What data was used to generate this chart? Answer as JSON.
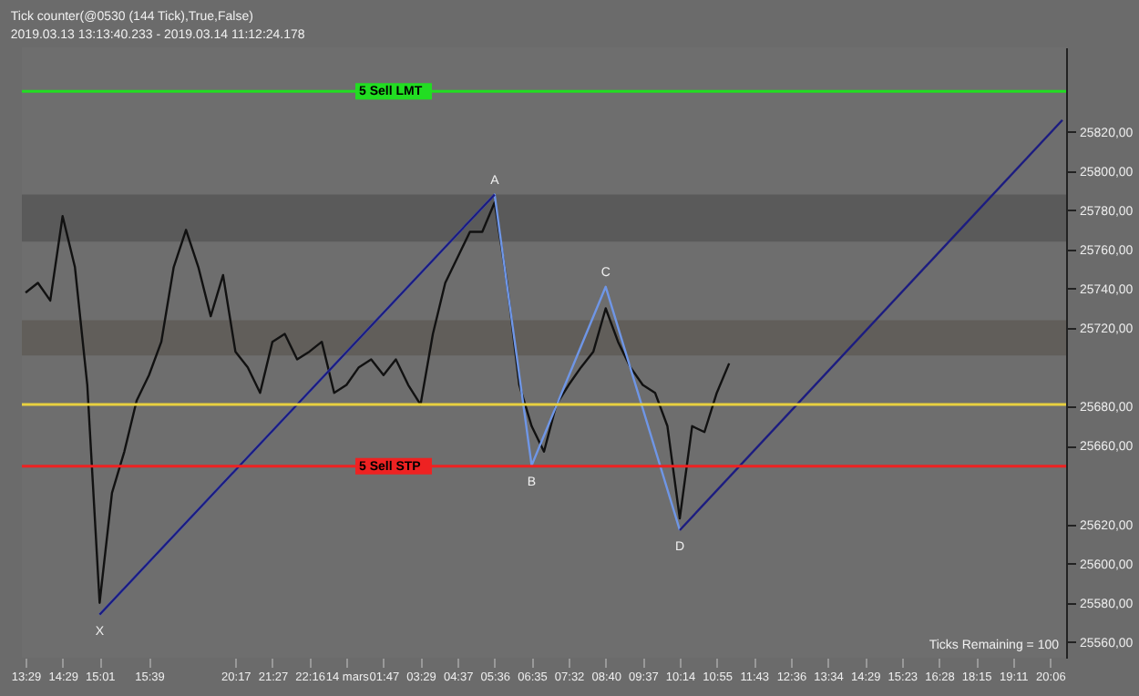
{
  "chart_data": {
    "type": "line",
    "title": "Tick counter(@0530 (144 Tick),True,False)",
    "subtitle": "2019.03.13 13:13:40.233 - 2019.03.14 11:12:24.178",
    "categories": [
      "13:29",
      null,
      null,
      "14:29",
      null,
      null,
      "15:01",
      null,
      null,
      null,
      "15:39",
      null,
      null,
      null,
      null,
      null,
      null,
      "20:17",
      null,
      null,
      "21:27",
      null,
      null,
      "22:16",
      null,
      null,
      "14 mars",
      null,
      null,
      "01:47",
      null,
      null,
      "03:29",
      null,
      null,
      "04:37",
      null,
      null,
      "05:36",
      null,
      null,
      "06:35",
      null,
      null,
      "07:32",
      null,
      null,
      "08:40",
      null,
      null,
      "09:37",
      null,
      null,
      "10:14",
      null,
      null,
      "10:55",
      null,
      null,
      "11:43",
      null,
      null,
      "12:36",
      null,
      null,
      "13:34",
      null,
      null,
      "14:29",
      null,
      null,
      "15:23",
      null,
      null,
      "16:28",
      null,
      null,
      "18:15",
      null,
      null,
      "19:11",
      null,
      null,
      "20:06",
      null
    ],
    "ylim": [
      25552,
      25863
    ],
    "yticks": [
      {
        "value": 25820,
        "label": "25820,00"
      },
      {
        "value": 25800,
        "label": "25800,00"
      },
      {
        "value": 25780,
        "label": "25780,00"
      },
      {
        "value": 25760,
        "label": "25760,00"
      },
      {
        "value": 25740,
        "label": "25740,00"
      },
      {
        "value": 25720,
        "label": "25720,00"
      },
      {
        "value": 25680,
        "label": "25680,00"
      },
      {
        "value": 25660,
        "label": "25660,00"
      },
      {
        "value": 25620,
        "label": "25620,00"
      },
      {
        "value": 25600,
        "label": "25600,00"
      },
      {
        "value": 25580,
        "label": "25580,00"
      },
      {
        "value": 25560,
        "label": "25560,00"
      }
    ],
    "series": [
      {
        "color": "#111111",
        "values": [
          25738,
          25743,
          25734,
          25777,
          25751,
          25691,
          25580,
          25636,
          25657,
          25683,
          25696,
          25713,
          25751,
          25770,
          25751,
          25726,
          25747,
          25708,
          25700,
          25687,
          25713,
          25717,
          25704,
          25708,
          25713,
          25687,
          25691,
          25700,
          25704,
          25696,
          25704,
          25691,
          25681,
          25717,
          25743,
          25756,
          25769,
          25769,
          25784,
          25743,
          25691,
          25670,
          25657,
          25681,
          25691,
          25700,
          25708,
          25730,
          25713,
          25700,
          25691,
          25687,
          25670,
          25623,
          25670,
          25667,
          25687,
          25702,
          null,
          null,
          null,
          null,
          null,
          null,
          null,
          null,
          null,
          null,
          null,
          null,
          null,
          null,
          null,
          null,
          null,
          null,
          null,
          null,
          null,
          null,
          null,
          null,
          null,
          null,
          null
        ]
      },
      {
        "color": "#6f96e6",
        "values": [
          null,
          null,
          null,
          null,
          null,
          null,
          25574,
          null,
          null,
          null,
          null,
          null,
          null,
          null,
          null,
          null,
          null,
          null,
          null,
          null,
          null,
          null,
          null,
          null,
          null,
          null,
          null,
          null,
          null,
          null,
          null,
          null,
          null,
          null,
          null,
          null,
          null,
          null,
          25788,
          null,
          null,
          25650,
          null,
          null,
          null,
          null,
          null,
          25741,
          null,
          null,
          null,
          null,
          null,
          25617,
          null,
          null,
          null,
          null,
          null,
          null,
          null,
          null,
          null,
          null,
          null,
          null,
          null,
          null,
          null,
          null,
          null,
          null,
          null,
          null,
          null,
          null,
          null,
          null,
          null,
          null,
          null,
          null,
          null,
          null,
          null
        ]
      },
      {
        "color": "#1c1c80",
        "values": [
          null,
          null,
          null,
          null,
          null,
          null,
          25574,
          null,
          null,
          null,
          null,
          null,
          null,
          null,
          null,
          null,
          null,
          null,
          null,
          null,
          null,
          null,
          null,
          null,
          null,
          null,
          null,
          null,
          null,
          null,
          null,
          null,
          null,
          null,
          null,
          null,
          null,
          null,
          25788,
          null,
          null,
          null,
          null,
          null,
          null,
          null,
          null,
          null,
          null,
          null,
          null,
          null,
          null,
          null,
          null,
          null,
          null,
          null,
          null,
          null,
          null,
          null,
          null,
          null,
          null,
          null,
          null,
          null,
          null,
          null,
          null,
          null,
          null,
          null,
          null,
          null,
          null,
          null,
          null,
          null,
          null,
          null,
          null,
          null,
          null
        ]
      },
      {
        "color": "#1c1c80",
        "values": [
          null,
          null,
          null,
          null,
          null,
          null,
          null,
          null,
          null,
          null,
          null,
          null,
          null,
          null,
          null,
          null,
          null,
          null,
          null,
          null,
          null,
          null,
          null,
          null,
          null,
          null,
          null,
          null,
          null,
          null,
          null,
          null,
          null,
          null,
          null,
          null,
          null,
          null,
          null,
          null,
          null,
          null,
          null,
          null,
          null,
          null,
          null,
          null,
          null,
          null,
          null,
          null,
          null,
          25617,
          null,
          null,
          null,
          null,
          null,
          null,
          null,
          null,
          null,
          null,
          null,
          null,
          null,
          null,
          null,
          null,
          null,
          null,
          null,
          null,
          null,
          null,
          null,
          null,
          null,
          null,
          null,
          null,
          null,
          null,
          25826
        ]
      }
    ],
    "annotations": [
      {
        "text": "X",
        "x": "15:01",
        "y": 25574
      },
      {
        "text": "A",
        "x": "05:36",
        "y": 25788
      },
      {
        "text": "B",
        "x": "06:35",
        "y": 25650
      },
      {
        "text": "C",
        "x": "08:40",
        "y": 25741
      },
      {
        "text": "D",
        "x": "10:14",
        "y": 25617
      },
      "Ticks Remaining = 100"
    ],
    "ref_lines": [
      {
        "axis": "y",
        "value": 25840.64,
        "label": "5 Sell LMT",
        "color": "#22dd22"
      },
      {
        "axis": "y",
        "value": 25649.63,
        "label": "5 Sell STP",
        "color": "#ee2222"
      },
      {
        "axis": "y",
        "value": 25681,
        "color": "#e8d040"
      }
    ],
    "bands": [
      {
        "axis": "y",
        "from": 25764,
        "to": 25788,
        "color": "#555555"
      },
      {
        "axis": "y",
        "from": 25706,
        "to": 25724,
        "color": "#5e5a55"
      }
    ],
    "legend": false,
    "grid": false,
    "marker": "none",
    "line_style": "solid"
  }
}
